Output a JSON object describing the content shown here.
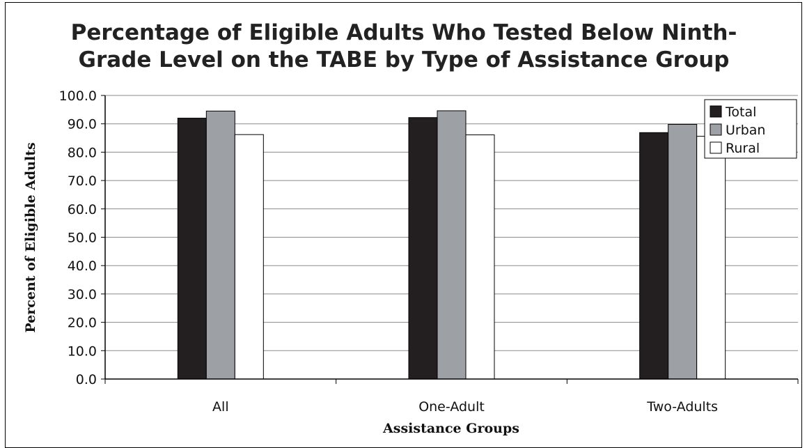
{
  "chart_data": {
    "type": "bar",
    "title_lines": [
      "Percentage of Eligible Adults Who Tested Below Ninth-",
      "Grade Level on the TABE by Type of Assistance Group"
    ],
    "xlabel": "Assistance Groups",
    "ylabel": "Percent of Eligible Adults",
    "categories": [
      "All",
      "One-Adult",
      "Two-Adults"
    ],
    "series": [
      {
        "name": "Total",
        "values": [
          92.0,
          92.2,
          86.9
        ],
        "color": "#231f20"
      },
      {
        "name": "Urban",
        "values": [
          94.5,
          94.6,
          89.8
        ],
        "color": "#9da1a6"
      },
      {
        "name": "Rural",
        "values": [
          86.2,
          86.1,
          85.6
        ],
        "color": "#ffffff"
      }
    ],
    "ylim": [
      0,
      100
    ],
    "yticks": [
      "0.0",
      "10.0",
      "20.0",
      "30.0",
      "40.0",
      "50.0",
      "60.0",
      "70.0",
      "80.0",
      "90.0",
      "100.0"
    ],
    "grid": true,
    "legend_position": "top-right"
  }
}
